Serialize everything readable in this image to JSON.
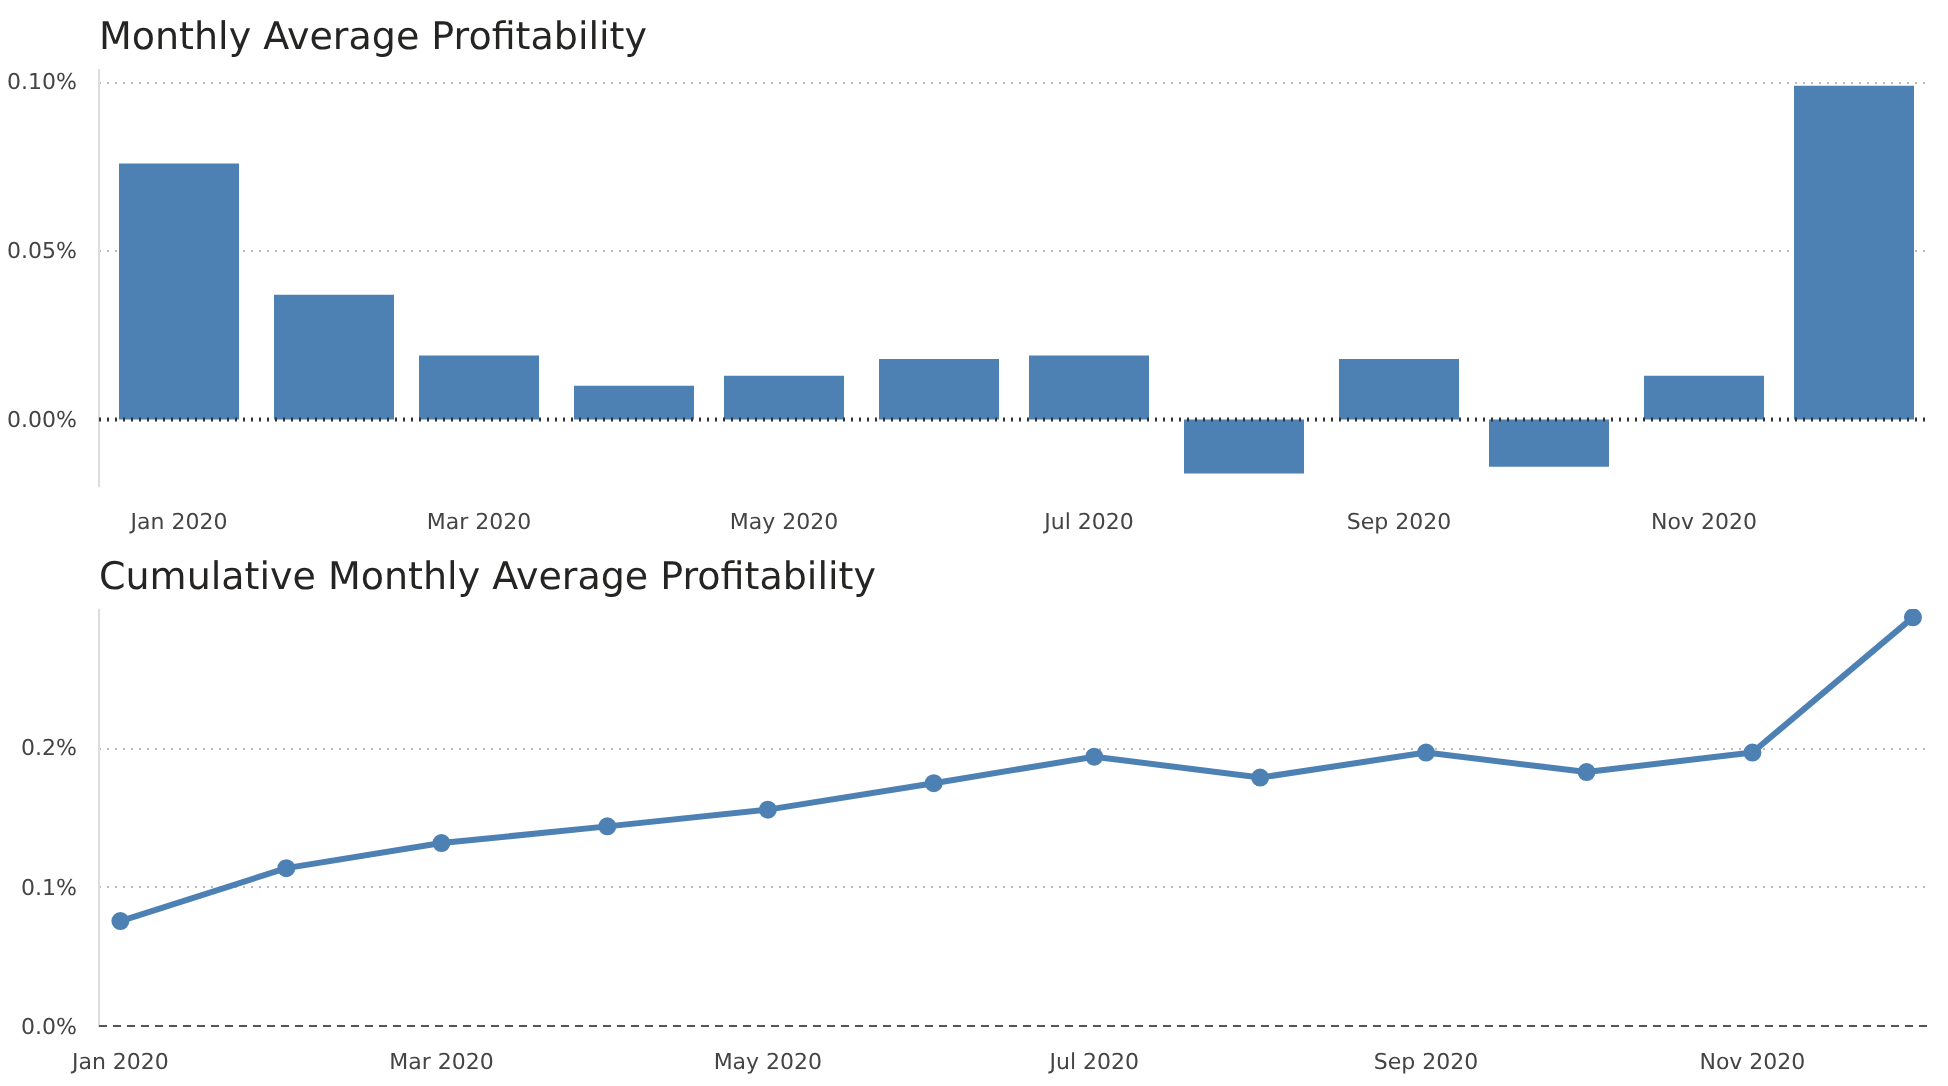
{
  "chart_data": [
    {
      "type": "bar",
      "title": "Monthly Average Profitability",
      "x": [
        "2020-01",
        "2020-02",
        "2020-03",
        "2020-04",
        "2020-05",
        "2020-06",
        "2020-07",
        "2020-08",
        "2020-09",
        "2020-10",
        "2020-11",
        "2020-12"
      ],
      "values": [
        0.076,
        0.037,
        0.019,
        0.01,
        0.013,
        0.018,
        0.019,
        -0.016,
        0.018,
        -0.014,
        0.013,
        0.099
      ],
      "color": "#4e81b3",
      "xlim": [
        "2019-12-16",
        "2020-12-16"
      ],
      "xticks": [
        {
          "value": "2020-01",
          "label": "Jan 2020"
        },
        {
          "value": "2020-03",
          "label": "Mar 2020"
        },
        {
          "value": "2020-05",
          "label": "May 2020"
        },
        {
          "value": "2020-07",
          "label": "Jul 2020"
        },
        {
          "value": "2020-09",
          "label": "Sep 2020"
        },
        {
          "value": "2020-11",
          "label": "Nov 2020"
        }
      ],
      "ylim": [
        -0.02,
        0.104
      ],
      "yticks": [
        {
          "value": 0,
          "label": "0.00%"
        },
        {
          "value": 0.05,
          "label": "0.05%"
        },
        {
          "value": 0.1,
          "label": "0.10%"
        }
      ],
      "grid": "y",
      "ref_lines": [
        {
          "axis": "y",
          "value": 0,
          "label": null,
          "color": "#333333",
          "line_style": "dotted"
        }
      ]
    },
    {
      "type": "line",
      "title": "Cumulative Monthly Average Profitability",
      "x": [
        "2020-01",
        "2020-02",
        "2020-03",
        "2020-04",
        "2020-05",
        "2020-06",
        "2020-07",
        "2020-08",
        "2020-09",
        "2020-10",
        "2020-11",
        "2020-12"
      ],
      "values": [
        0.076,
        0.114,
        0.132,
        0.144,
        0.156,
        0.175,
        0.194,
        0.179,
        0.197,
        0.183,
        0.197,
        0.294
      ],
      "color": "#4e81b3",
      "marker": "circle",
      "line_style": "solid",
      "xlim": [
        "2019-12-28",
        "2020-12-04"
      ],
      "xticks": [
        {
          "value": "2020-01",
          "label": "Jan 2020"
        },
        {
          "value": "2020-03",
          "label": "Mar 2020"
        },
        {
          "value": "2020-05",
          "label": "May 2020"
        },
        {
          "value": "2020-07",
          "label": "Jul 2020"
        },
        {
          "value": "2020-09",
          "label": "Sep 2020"
        },
        {
          "value": "2020-11",
          "label": "Nov 2020"
        }
      ],
      "ylim": [
        0,
        0.3
      ],
      "yticks": [
        {
          "value": 0,
          "label": "0.0%"
        },
        {
          "value": 0.1,
          "label": "0.1%"
        },
        {
          "value": 0.2,
          "label": "0.2%"
        }
      ],
      "grid": "y",
      "ref_lines": [
        {
          "axis": "y",
          "value": 0,
          "label": null,
          "color": "#555555",
          "line_style": "dashed"
        }
      ]
    }
  ]
}
